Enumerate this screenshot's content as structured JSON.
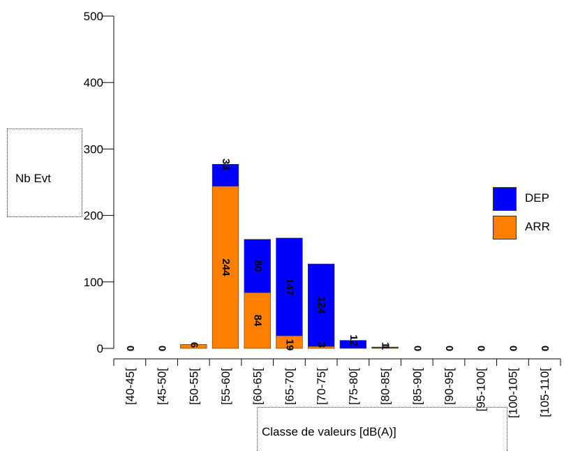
{
  "chart_data": {
    "type": "bar",
    "stacked": true,
    "categories": [
      "[40-45[",
      "[45-50[",
      "[50-55[",
      "[55-60[",
      "[60-65[",
      "[65-70[",
      "[70-75[",
      "[75-80[",
      "[80-85[",
      "[85-90[",
      "[90-95[",
      "[95-100[",
      "[100-105[",
      "[105-110["
    ],
    "series": [
      {
        "name": "ARR",
        "color": "#ff8000",
        "values": [
          0,
          0,
          6,
          244,
          84,
          19,
          3,
          0,
          1,
          0,
          0,
          0,
          0,
          0
        ]
      },
      {
        "name": "DEP",
        "color": "#0000ff",
        "values": [
          0,
          0,
          0,
          33,
          80,
          147,
          124,
          12,
          1,
          0,
          0,
          0,
          0,
          0
        ]
      }
    ],
    "xlabel": "Classe de valeurs [dB(A)]",
    "ylabel": "Nb Evt",
    "ylim": [
      0,
      500
    ],
    "yticks": [
      0,
      100,
      200,
      300,
      400,
      500
    ],
    "legend_position": "right",
    "grid": false
  }
}
